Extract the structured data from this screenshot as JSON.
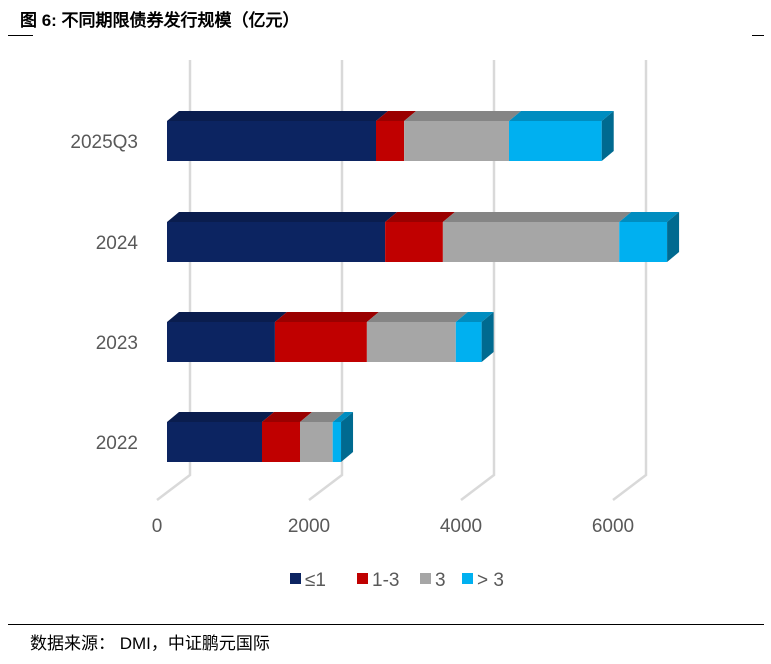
{
  "title": "图 6: 不同期限债券发行规模（亿元）",
  "source": "数据来源：  DMI，中证鹏元国际",
  "chart_data": {
    "type": "bar",
    "orientation": "horizontal",
    "stacked": true,
    "style": "3d",
    "categories": [
      "2025Q3",
      "2024",
      "2023",
      "2022"
    ],
    "series": [
      {
        "name": "≤1",
        "color": "#0c2461",
        "values": [
          2750,
          2870,
          1420,
          1250
        ]
      },
      {
        "name": "1-3",
        "color": "#c00000",
        "values": [
          370,
          760,
          1210,
          500
        ]
      },
      {
        "name": "3",
        "color": "#a6a6a6",
        "values": [
          1380,
          2320,
          1170,
          430
        ]
      },
      {
        "name": "> 3",
        "color": "#00b0f0",
        "values": [
          1220,
          630,
          340,
          110
        ]
      }
    ],
    "xlim": [
      0,
      6000
    ],
    "xticks": [
      0,
      2000,
      4000,
      6000
    ],
    "grid": true,
    "legend": "bottom"
  }
}
